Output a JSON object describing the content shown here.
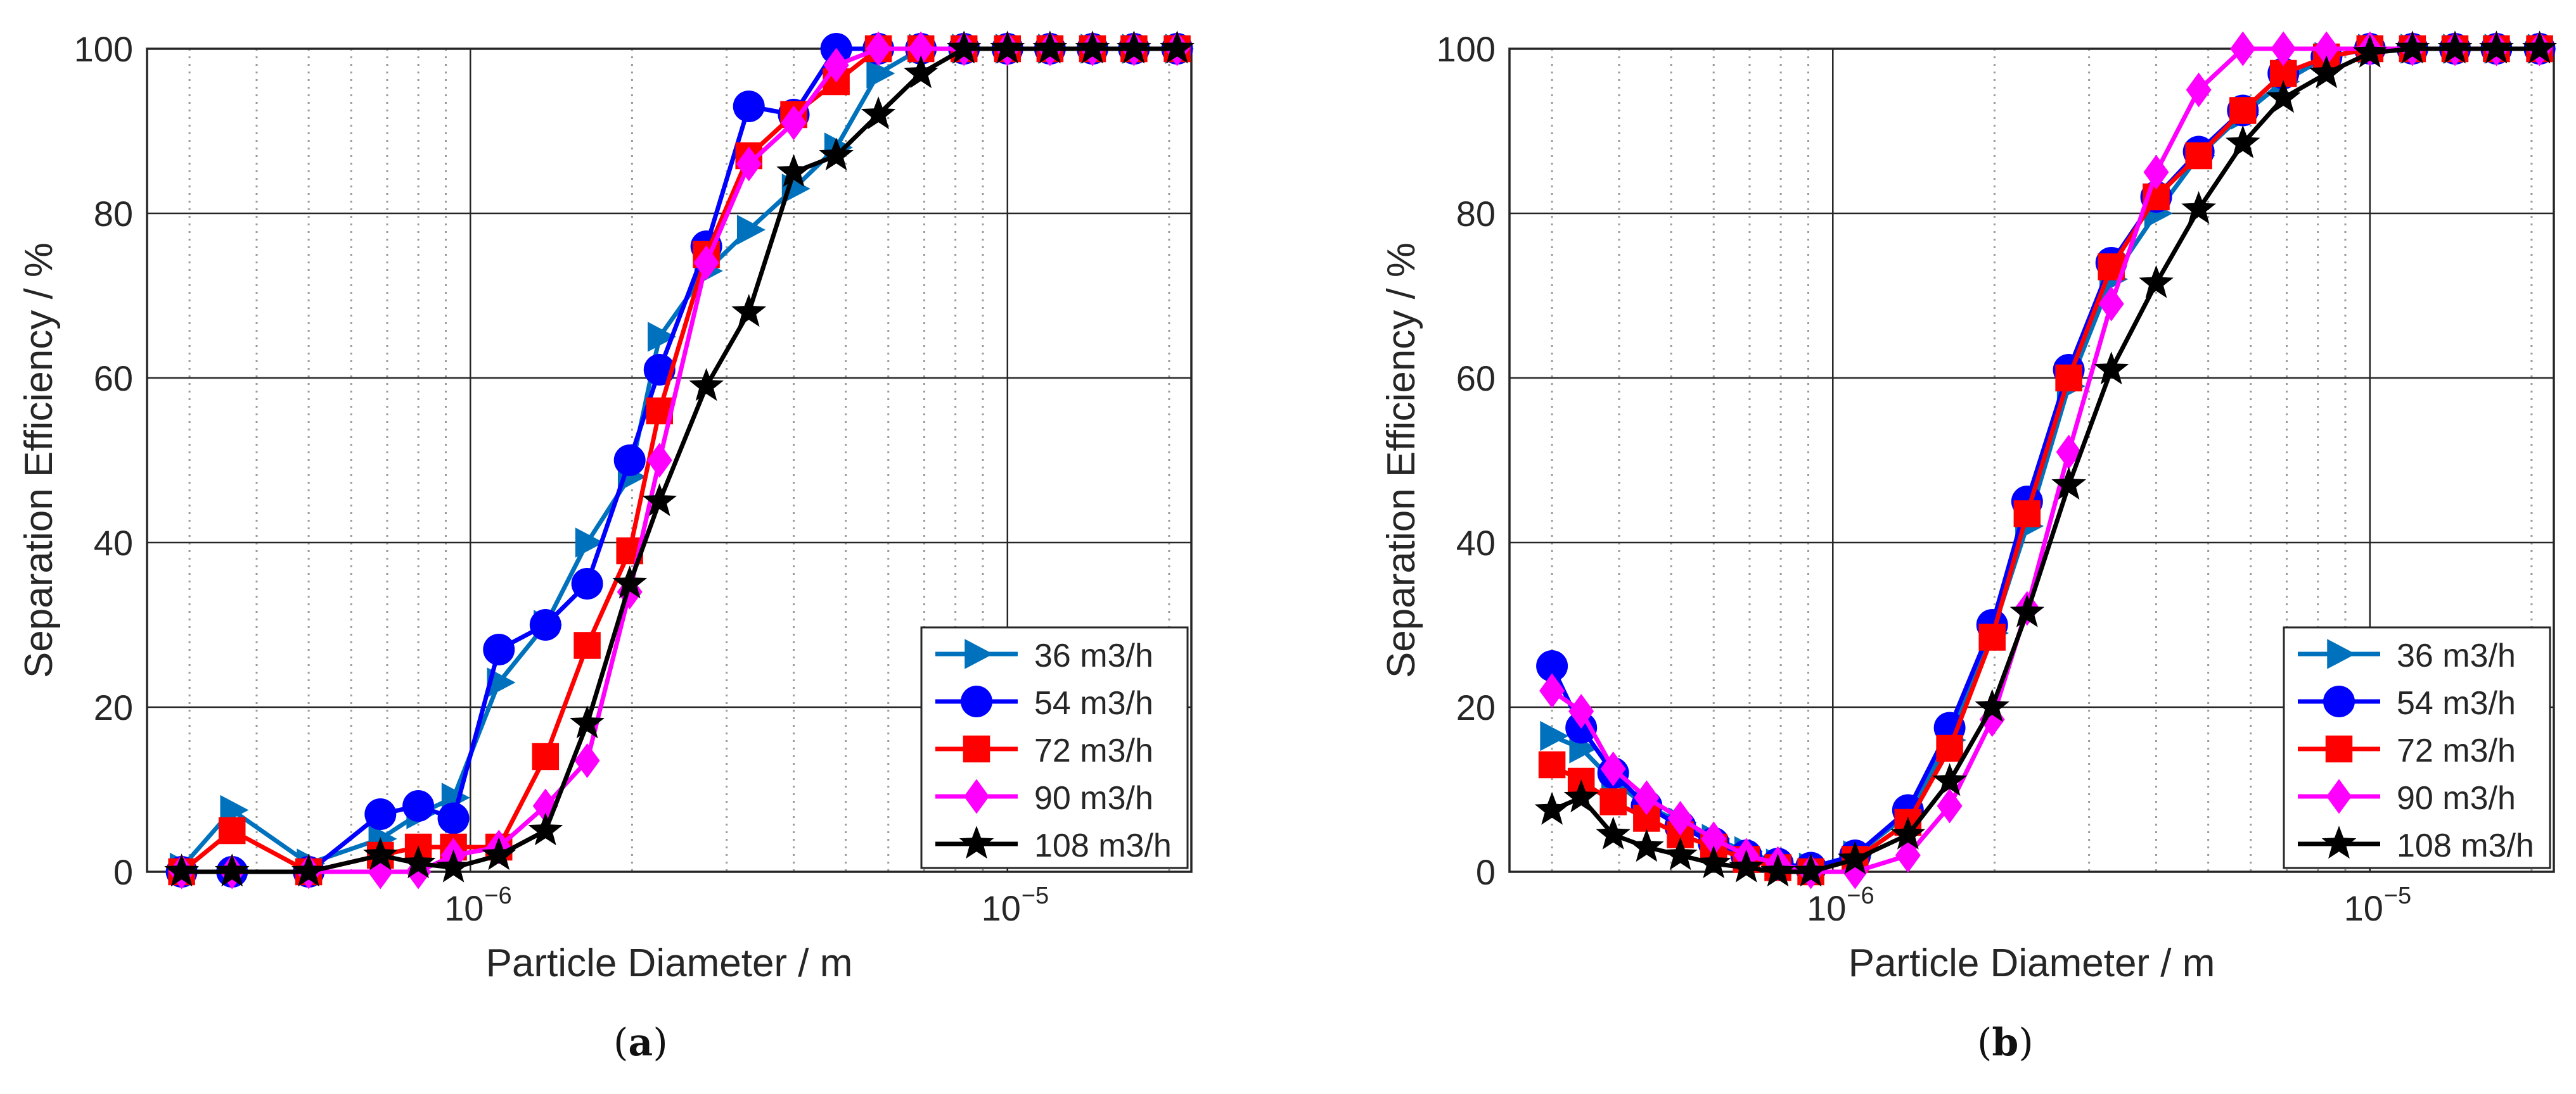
{
  "figure": {
    "panels": [
      "a",
      "b"
    ],
    "panel_a_label": "a",
    "panel_b_label": "b",
    "paren_open": "(",
    "paren_close": ")"
  },
  "chart_data": [
    {
      "type": "line",
      "panel": "a",
      "xlabel": "Particle Diameter / m",
      "ylabel": "Separation Efficiency / %",
      "xscale": "log",
      "xlim": [
        2.5e-07,
        2.2e-05
      ],
      "ylim": [
        0,
        100
      ],
      "yticks": [
        0,
        20,
        40,
        60,
        80,
        100
      ],
      "xticks": [
        1e-06,
        1e-05
      ],
      "xtick_labels": [
        "10",
        "10"
      ],
      "xtick_exponents": [
        "−6",
        "−5"
      ],
      "grid": true,
      "legend_position": "bottom-right",
      "series": [
        {
          "name": "36 m3/h",
          "color": "#0072BD",
          "marker": "triangle-right",
          "x": [
            2.9e-07,
            3.6e-07,
            5e-07,
            6.8e-07,
            8e-07,
            9.3e-07,
            1.13e-06,
            1.38e-06,
            1.65e-06,
            1.98e-06,
            2.25e-06,
            2.75e-06,
            3.3e-06,
            4e-06,
            4.8e-06,
            5.75e-06,
            6.9e-06,
            8.3e-06,
            1e-05,
            1.2e-05,
            1.44e-05,
            1.72e-05,
            2.07e-05
          ],
          "y": [
            0.5,
            7.5,
            1,
            4,
            7,
            9,
            23,
            30,
            40,
            48,
            65,
            73,
            78,
            83,
            88,
            97,
            100,
            100,
            100,
            100,
            100,
            100,
            100
          ]
        },
        {
          "name": "54 m3/h",
          "color": "#0000FF",
          "marker": "circle",
          "x": [
            2.9e-07,
            3.6e-07,
            5e-07,
            6.8e-07,
            8e-07,
            9.3e-07,
            1.13e-06,
            1.38e-06,
            1.65e-06,
            1.98e-06,
            2.25e-06,
            2.75e-06,
            3.3e-06,
            4e-06,
            4.8e-06,
            5.75e-06,
            6.9e-06,
            8.3e-06,
            1e-05,
            1.2e-05,
            1.44e-05,
            1.72e-05,
            2.07e-05
          ],
          "y": [
            0,
            0,
            0,
            7,
            8,
            6.5,
            27,
            30,
            35,
            50,
            61,
            76,
            93,
            92,
            100,
            100,
            100,
            100,
            100,
            100,
            100,
            100,
            100
          ]
        },
        {
          "name": "72 m3/h",
          "color": "#FF0000",
          "marker": "square",
          "x": [
            2.9e-07,
            3.6e-07,
            5e-07,
            6.8e-07,
            8e-07,
            9.3e-07,
            1.13e-06,
            1.38e-06,
            1.65e-06,
            1.98e-06,
            2.25e-06,
            2.75e-06,
            3.3e-06,
            4e-06,
            4.8e-06,
            5.75e-06,
            6.9e-06,
            8.3e-06,
            1e-05,
            1.2e-05,
            1.44e-05,
            1.72e-05,
            2.07e-05
          ],
          "y": [
            0,
            5,
            0,
            2,
            3,
            3,
            3,
            14,
            27.5,
            39,
            56,
            75,
            87,
            92,
            96,
            100,
            100,
            100,
            100,
            100,
            100,
            100,
            100
          ]
        },
        {
          "name": "90 m3/h",
          "color": "#FF00FF",
          "marker": "diamond",
          "x": [
            2.9e-07,
            3.6e-07,
            5e-07,
            6.8e-07,
            8e-07,
            9.3e-07,
            1.13e-06,
            1.38e-06,
            1.65e-06,
            1.98e-06,
            2.25e-06,
            2.75e-06,
            3.3e-06,
            4e-06,
            4.8e-06,
            5.75e-06,
            6.9e-06,
            8.3e-06,
            1e-05,
            1.2e-05,
            1.44e-05,
            1.72e-05,
            2.07e-05
          ],
          "y": [
            0,
            0,
            0,
            0,
            0,
            2,
            3,
            8,
            13.5,
            34,
            50,
            74,
            86,
            91,
            98,
            100,
            100,
            100,
            100,
            100,
            100,
            100,
            100
          ]
        },
        {
          "name": "108 m3/h",
          "color": "#000000",
          "marker": "star",
          "x": [
            2.9e-07,
            3.6e-07,
            5e-07,
            6.8e-07,
            8e-07,
            9.3e-07,
            1.13e-06,
            1.38e-06,
            1.65e-06,
            1.98e-06,
            2.25e-06,
            2.75e-06,
            3.3e-06,
            4e-06,
            4.8e-06,
            5.75e-06,
            6.9e-06,
            8.3e-06,
            1e-05,
            1.2e-05,
            1.44e-05,
            1.72e-05,
            2.07e-05
          ],
          "y": [
            0,
            0,
            0,
            2,
            1,
            0.5,
            2,
            5,
            18,
            35,
            45,
            59,
            68,
            85,
            87,
            92,
            97,
            100,
            100,
            100,
            100,
            100,
            100
          ]
        }
      ]
    },
    {
      "type": "line",
      "panel": "b",
      "xlabel": "Particle Diameter / m",
      "ylabel": "Separation Efficiency / %",
      "xscale": "log",
      "xlim": [
        2.5e-07,
        2.2e-05
      ],
      "ylim": [
        0,
        100
      ],
      "yticks": [
        0,
        20,
        40,
        60,
        80,
        100
      ],
      "xticks": [
        1e-06,
        1e-05
      ],
      "xtick_labels": [
        "10",
        "10"
      ],
      "xtick_exponents": [
        "−6",
        "−5"
      ],
      "grid": true,
      "legend_position": "bottom-right",
      "series": [
        {
          "name": "36 m3/h",
          "color": "#0072BD",
          "marker": "triangle-right",
          "x": [
            3e-07,
            3.4e-07,
            3.9e-07,
            4.5e-07,
            5.2e-07,
            6e-07,
            6.9e-07,
            7.9e-07,
            9.1e-07,
            1.1e-06,
            1.38e-06,
            1.65e-06,
            1.98e-06,
            2.3e-06,
            2.75e-06,
            3.3e-06,
            4e-06,
            4.8e-06,
            5.8e-06,
            6.9e-06,
            8.3e-06,
            1e-05,
            1.2e-05,
            1.44e-05,
            1.72e-05,
            2.07e-05
          ],
          "y": [
            16.5,
            15,
            11,
            8,
            6,
            4,
            2.5,
            1,
            0.5,
            2,
            7,
            16,
            29,
            42,
            59,
            72,
            80,
            87,
            92,
            96,
            99,
            100,
            100,
            100,
            100,
            100
          ]
        },
        {
          "name": "54 m3/h",
          "color": "#0000FF",
          "marker": "circle",
          "x": [
            3e-07,
            3.4e-07,
            3.9e-07,
            4.5e-07,
            5.2e-07,
            6e-07,
            6.9e-07,
            7.9e-07,
            9.1e-07,
            1.1e-06,
            1.38e-06,
            1.65e-06,
            1.98e-06,
            2.3e-06,
            2.75e-06,
            3.3e-06,
            4e-06,
            4.8e-06,
            5.8e-06,
            6.9e-06,
            8.3e-06,
            1e-05,
            1.2e-05,
            1.44e-05,
            1.72e-05,
            2.07e-05
          ],
          "y": [
            25,
            17.5,
            12,
            8,
            5.5,
            3.5,
            2,
            1,
            0.5,
            2,
            7.5,
            17.5,
            30,
            45,
            61,
            74,
            82,
            87.5,
            92.5,
            97,
            99,
            100,
            100,
            100,
            100,
            100
          ]
        },
        {
          "name": "72 m3/h",
          "color": "#FF0000",
          "marker": "square",
          "x": [
            3e-07,
            3.4e-07,
            3.9e-07,
            4.5e-07,
            5.2e-07,
            6e-07,
            6.9e-07,
            7.9e-07,
            9.1e-07,
            1.1e-06,
            1.38e-06,
            1.65e-06,
            1.98e-06,
            2.3e-06,
            2.75e-06,
            3.3e-06,
            4e-06,
            4.8e-06,
            5.8e-06,
            6.9e-06,
            8.3e-06,
            1e-05,
            1.2e-05,
            1.44e-05,
            1.72e-05,
            2.07e-05
          ],
          "y": [
            13,
            11,
            8.5,
            6.5,
            4.5,
            3,
            1.5,
            0.5,
            0,
            1.5,
            6,
            15,
            28.5,
            43.5,
            60,
            73.5,
            82,
            87,
            92.5,
            97,
            99,
            100,
            100,
            100,
            100,
            100
          ]
        },
        {
          "name": "90 m3/h",
          "color": "#FF00FF",
          "marker": "diamond",
          "x": [
            3e-07,
            3.4e-07,
            3.9e-07,
            4.5e-07,
            5.2e-07,
            6e-07,
            6.9e-07,
            7.9e-07,
            9.1e-07,
            1.1e-06,
            1.38e-06,
            1.65e-06,
            1.98e-06,
            2.3e-06,
            2.75e-06,
            3.3e-06,
            4e-06,
            4.8e-06,
            5.8e-06,
            6.9e-06,
            8.3e-06,
            1e-05,
            1.2e-05,
            1.44e-05,
            1.72e-05,
            2.07e-05
          ],
          "y": [
            22,
            19.5,
            12.5,
            9,
            6.5,
            4,
            2,
            1,
            0,
            0,
            2,
            8,
            18.5,
            32,
            51,
            69,
            85,
            95,
            100,
            100,
            100,
            100,
            100,
            100,
            100,
            100
          ]
        },
        {
          "name": "108 m3/h",
          "color": "#000000",
          "marker": "star",
          "x": [
            3e-07,
            3.4e-07,
            3.9e-07,
            4.5e-07,
            5.2e-07,
            6e-07,
            6.9e-07,
            7.9e-07,
            9.1e-07,
            1.1e-06,
            1.38e-06,
            1.65e-06,
            1.98e-06,
            2.3e-06,
            2.75e-06,
            3.3e-06,
            4e-06,
            4.8e-06,
            5.8e-06,
            6.9e-06,
            8.3e-06,
            1e-05,
            1.2e-05,
            1.44e-05,
            1.72e-05,
            2.07e-05
          ],
          "y": [
            7.5,
            9,
            4.5,
            3,
            2,
            1,
            0.5,
            0,
            0,
            1.5,
            4.5,
            11,
            20,
            31.5,
            47,
            61,
            71.5,
            80.5,
            88.5,
            94,
            97,
            99.5,
            100,
            100,
            100,
            100
          ]
        }
      ]
    }
  ]
}
